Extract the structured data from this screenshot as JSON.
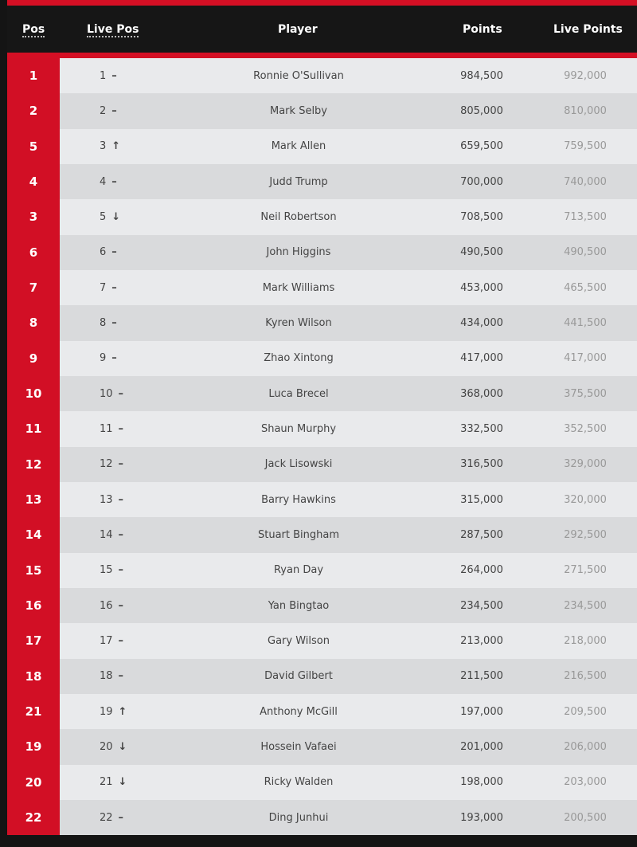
{
  "header": {
    "pos": "Pos",
    "live_pos": "Live Pos",
    "player": "Player",
    "points": "Points",
    "live_points": "Live Points"
  },
  "colors": {
    "accent": "#d20f25",
    "header_bg": "#161616",
    "row_light": "#e9eaec",
    "row_dark": "#d9dadc"
  },
  "rows": [
    {
      "pos": "1",
      "live_pos": "1",
      "trend": "–",
      "player": "Ronnie O'Sullivan",
      "points": "984,500",
      "live_points": "992,000"
    },
    {
      "pos": "2",
      "live_pos": "2",
      "trend": "–",
      "player": "Mark Selby",
      "points": "805,000",
      "live_points": "810,000"
    },
    {
      "pos": "5",
      "live_pos": "3",
      "trend": "↑",
      "player": "Mark Allen",
      "points": "659,500",
      "live_points": "759,500"
    },
    {
      "pos": "4",
      "live_pos": "4",
      "trend": "–",
      "player": "Judd Trump",
      "points": "700,000",
      "live_points": "740,000"
    },
    {
      "pos": "3",
      "live_pos": "5",
      "trend": "↓",
      "player": "Neil Robertson",
      "points": "708,500",
      "live_points": "713,500"
    },
    {
      "pos": "6",
      "live_pos": "6",
      "trend": "–",
      "player": "John Higgins",
      "points": "490,500",
      "live_points": "490,500"
    },
    {
      "pos": "7",
      "live_pos": "7",
      "trend": "–",
      "player": "Mark Williams",
      "points": "453,000",
      "live_points": "465,500"
    },
    {
      "pos": "8",
      "live_pos": "8",
      "trend": "–",
      "player": "Kyren Wilson",
      "points": "434,000",
      "live_points": "441,500"
    },
    {
      "pos": "9",
      "live_pos": "9",
      "trend": "–",
      "player": "Zhao Xintong",
      "points": "417,000",
      "live_points": "417,000"
    },
    {
      "pos": "10",
      "live_pos": "10",
      "trend": "–",
      "player": "Luca Brecel",
      "points": "368,000",
      "live_points": "375,500"
    },
    {
      "pos": "11",
      "live_pos": "11",
      "trend": "–",
      "player": "Shaun Murphy",
      "points": "332,500",
      "live_points": "352,500"
    },
    {
      "pos": "12",
      "live_pos": "12",
      "trend": "–",
      "player": "Jack Lisowski",
      "points": "316,500",
      "live_points": "329,000"
    },
    {
      "pos": "13",
      "live_pos": "13",
      "trend": "–",
      "player": "Barry Hawkins",
      "points": "315,000",
      "live_points": "320,000"
    },
    {
      "pos": "14",
      "live_pos": "14",
      "trend": "–",
      "player": "Stuart Bingham",
      "points": "287,500",
      "live_points": "292,500"
    },
    {
      "pos": "15",
      "live_pos": "15",
      "trend": "–",
      "player": "Ryan Day",
      "points": "264,000",
      "live_points": "271,500"
    },
    {
      "pos": "16",
      "live_pos": "16",
      "trend": "–",
      "player": "Yan Bingtao",
      "points": "234,500",
      "live_points": "234,500"
    },
    {
      "pos": "17",
      "live_pos": "17",
      "trend": "–",
      "player": "Gary Wilson",
      "points": "213,000",
      "live_points": "218,000"
    },
    {
      "pos": "18",
      "live_pos": "18",
      "trend": "–",
      "player": "David Gilbert",
      "points": "211,500",
      "live_points": "216,500"
    },
    {
      "pos": "21",
      "live_pos": "19",
      "trend": "↑",
      "player": "Anthony McGill",
      "points": "197,000",
      "live_points": "209,500"
    },
    {
      "pos": "19",
      "live_pos": "20",
      "trend": "↓",
      "player": "Hossein Vafaei",
      "points": "201,000",
      "live_points": "206,000"
    },
    {
      "pos": "20",
      "live_pos": "21",
      "trend": "↓",
      "player": "Ricky Walden",
      "points": "198,000",
      "live_points": "203,000"
    },
    {
      "pos": "22",
      "live_pos": "22",
      "trend": "–",
      "player": "Ding Junhui",
      "points": "193,000",
      "live_points": "200,500"
    }
  ]
}
